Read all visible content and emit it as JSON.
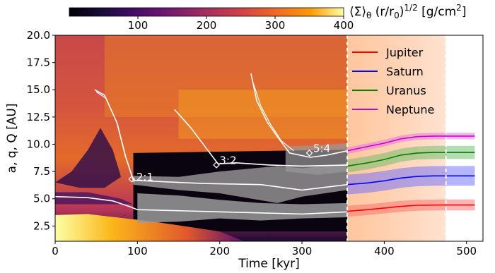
{
  "chart_data": {
    "type": "line",
    "title": "",
    "xlabel": "Time [kyr]",
    "ylabel": "a, q, Q [AU]",
    "xlim": [
      0,
      520
    ],
    "ylim": [
      1.1,
      20.0
    ],
    "xticks": [
      "0",
      "100",
      "200",
      "300",
      "400",
      "500"
    ],
    "yticks": [
      "2.5",
      "5.0",
      "7.5",
      "10.0",
      "12.5",
      "15.0",
      "17.5",
      "20.0"
    ],
    "colorbar": {
      "label": "⟨Σ⟩θ (r/r0)1/2 [g/cm2]",
      "label_parts": {
        "main": "⟨Σ⟩",
        "sub1": "θ",
        "mid": " (r/r",
        "sub2": "0",
        "close": ")",
        "sup1": "1/2",
        "unit": " [g/cm",
        "sup2": "2",
        "end": "]"
      },
      "range": [
        0,
        400
      ],
      "ticks": [
        "100",
        "200",
        "300",
        "400"
      ],
      "colormap": "inferno"
    },
    "legend": {
      "placement": "top-right",
      "entries": [
        {
          "name": "Jupiter",
          "color": "#ff0000"
        },
        {
          "name": "Saturn",
          "color": "#0000ff"
        },
        {
          "name": "Uranus",
          "color": "#008000"
        },
        {
          "name": "Neptune",
          "color": "#cc00cc"
        }
      ]
    },
    "annotations": [
      {
        "text": "2:1",
        "x": 97,
        "y": 7.0
      },
      {
        "text": "3:2",
        "x": 198,
        "y": 8.5
      },
      {
        "text": "5:4",
        "x": 312,
        "y": 9.6
      }
    ],
    "regions": {
      "gas_disk_end": 355,
      "transition_end": 475
    },
    "series": [
      {
        "name": "Jupiter",
        "color": "#ff0000",
        "x": [
          355,
          380,
          400,
          420,
          440,
          460,
          475,
          500,
          510
        ],
        "values": [
          3.85,
          4.0,
          4.15,
          4.3,
          4.4,
          4.42,
          4.43,
          4.43,
          4.43
        ]
      },
      {
        "name": "Saturn",
        "color": "#0000ff",
        "x": [
          355,
          380,
          400,
          420,
          440,
          460,
          475,
          500,
          510
        ],
        "values": [
          6.3,
          6.45,
          6.65,
          6.9,
          7.05,
          7.1,
          7.1,
          7.1,
          7.1
        ]
      },
      {
        "name": "Uranus",
        "color": "#008000",
        "x": [
          355,
          380,
          400,
          420,
          440,
          460,
          475,
          500,
          510
        ],
        "values": [
          8.0,
          8.3,
          8.6,
          9.0,
          9.2,
          9.25,
          9.25,
          9.25,
          9.25
        ]
      },
      {
        "name": "Neptune",
        "color": "#cc00cc",
        "x": [
          355,
          380,
          400,
          420,
          440,
          460,
          475,
          500,
          510
        ],
        "values": [
          9.4,
          9.8,
          10.1,
          10.5,
          10.7,
          10.75,
          10.75,
          10.75,
          10.75
        ]
      }
    ]
  }
}
